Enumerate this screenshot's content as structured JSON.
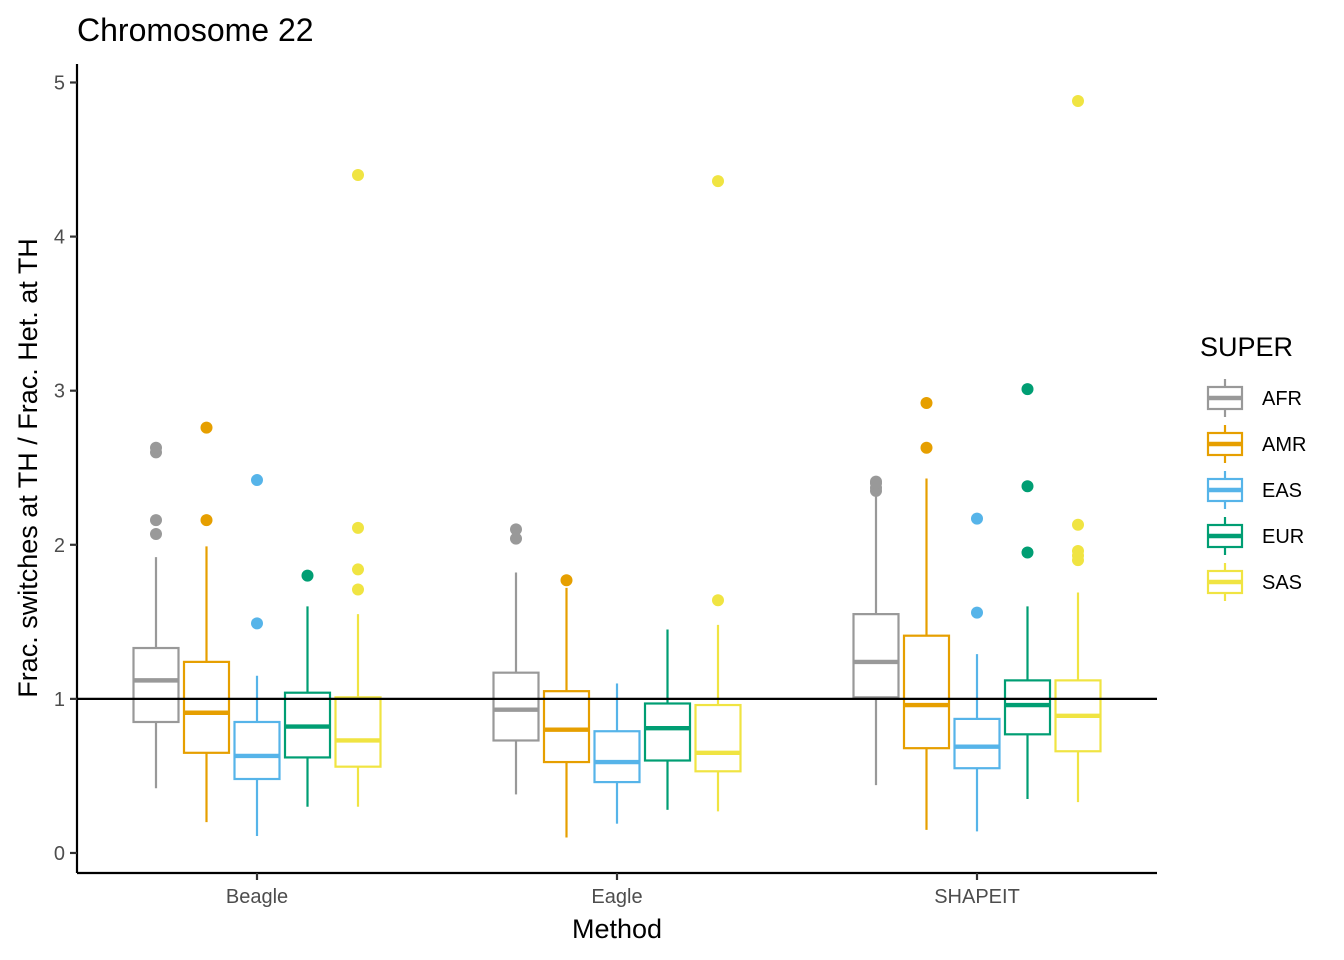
{
  "chart_data": {
    "type": "box",
    "title": "Chromosome 22",
    "xlabel": "Method",
    "ylabel": "Frac. switches at TH / Frac. Het. at TH",
    "categories": [
      "Beagle",
      "Eagle",
      "SHAPEIT"
    ],
    "ylim": [
      -0.13,
      5.12
    ],
    "yticks": [
      0,
      1,
      2,
      3,
      4,
      5
    ],
    "reference_line": 1,
    "grid": false,
    "legend": {
      "title": "SUPER",
      "position": "right"
    },
    "series": [
      {
        "name": "AFR",
        "color": "#999999",
        "boxes": [
          {
            "category": "Beagle",
            "min": 0.42,
            "q1": 0.85,
            "median": 1.12,
            "q3": 1.33,
            "max": 1.92,
            "outliers": [
              2.07,
              2.16,
              2.6,
              2.63
            ]
          },
          {
            "category": "Eagle",
            "min": 0.38,
            "q1": 0.73,
            "median": 0.93,
            "q3": 1.17,
            "max": 1.82,
            "outliers": [
              2.04,
              2.1
            ]
          },
          {
            "category": "SHAPEIT",
            "min": 0.44,
            "q1": 1.01,
            "median": 1.24,
            "q3": 1.55,
            "max": 2.34,
            "outliers": [
              2.35,
              2.37,
              2.4,
              2.41
            ]
          }
        ]
      },
      {
        "name": "AMR",
        "color": "#E69F00",
        "boxes": [
          {
            "category": "Beagle",
            "min": 0.2,
            "q1": 0.65,
            "median": 0.91,
            "q3": 1.24,
            "max": 1.99,
            "outliers": [
              2.16,
              2.76
            ]
          },
          {
            "category": "Eagle",
            "min": 0.1,
            "q1": 0.59,
            "median": 0.8,
            "q3": 1.05,
            "max": 1.72,
            "outliers": [
              1.77
            ]
          },
          {
            "category": "SHAPEIT",
            "min": 0.15,
            "q1": 0.68,
            "median": 0.96,
            "q3": 1.41,
            "max": 2.43,
            "outliers": [
              2.63,
              2.92
            ]
          }
        ]
      },
      {
        "name": "EAS",
        "color": "#56B4E9",
        "boxes": [
          {
            "category": "Beagle",
            "min": 0.11,
            "q1": 0.48,
            "median": 0.63,
            "q3": 0.85,
            "max": 1.15,
            "outliers": [
              1.49,
              2.42
            ]
          },
          {
            "category": "Eagle",
            "min": 0.19,
            "q1": 0.46,
            "median": 0.59,
            "q3": 0.79,
            "max": 1.1,
            "outliers": []
          },
          {
            "category": "SHAPEIT",
            "min": 0.14,
            "q1": 0.55,
            "median": 0.69,
            "q3": 0.87,
            "max": 1.29,
            "outliers": [
              1.56,
              2.17
            ]
          }
        ]
      },
      {
        "name": "EUR",
        "color": "#009E73",
        "boxes": [
          {
            "category": "Beagle",
            "min": 0.3,
            "q1": 0.62,
            "median": 0.82,
            "q3": 1.04,
            "max": 1.6,
            "outliers": [
              1.8
            ]
          },
          {
            "category": "Eagle",
            "min": 0.28,
            "q1": 0.6,
            "median": 0.81,
            "q3": 0.97,
            "max": 1.45,
            "outliers": []
          },
          {
            "category": "SHAPEIT",
            "min": 0.35,
            "q1": 0.77,
            "median": 0.96,
            "q3": 1.12,
            "max": 1.6,
            "outliers": [
              1.95,
              2.38,
              3.01
            ]
          }
        ]
      },
      {
        "name": "SAS",
        "color": "#F0E442",
        "boxes": [
          {
            "category": "Beagle",
            "min": 0.3,
            "q1": 0.56,
            "median": 0.73,
            "q3": 1.01,
            "max": 1.55,
            "outliers": [
              1.71,
              1.84,
              2.11,
              4.4
            ]
          },
          {
            "category": "Eagle",
            "min": 0.27,
            "q1": 0.53,
            "median": 0.65,
            "q3": 0.96,
            "max": 1.48,
            "outliers": [
              1.64,
              4.36
            ]
          },
          {
            "category": "SHAPEIT",
            "min": 0.33,
            "q1": 0.66,
            "median": 0.89,
            "q3": 1.12,
            "max": 1.69,
            "outliers": [
              1.9,
              1.93,
              1.96,
              2.13,
              4.88
            ]
          }
        ]
      }
    ]
  }
}
